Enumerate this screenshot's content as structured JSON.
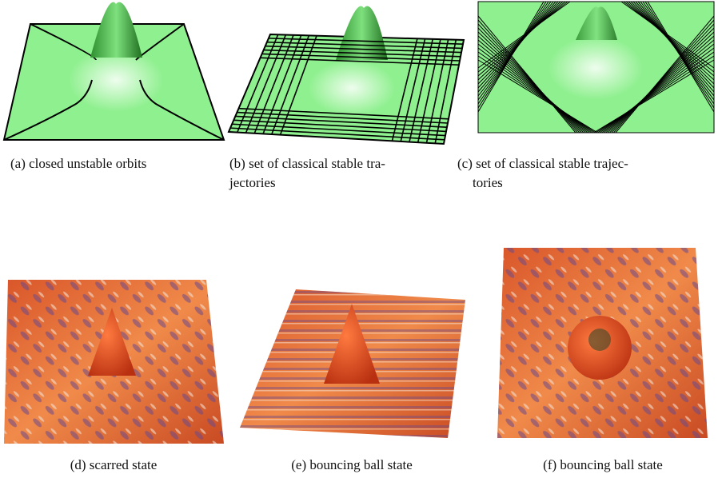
{
  "figures": [
    {
      "caption": [
        "(a) closed unstable orbits"
      ]
    },
    {
      "caption": [
        "(b) set of classical stable tra-",
        "jectories"
      ]
    },
    {
      "caption": [
        "(c) set of classical stable trajec-",
        "tories"
      ]
    },
    {
      "caption": [
        "(d) scarred state"
      ]
    },
    {
      "caption": [
        "(e) bouncing ball state"
      ]
    },
    {
      "caption": [
        "(f) bouncing ball state"
      ]
    }
  ]
}
